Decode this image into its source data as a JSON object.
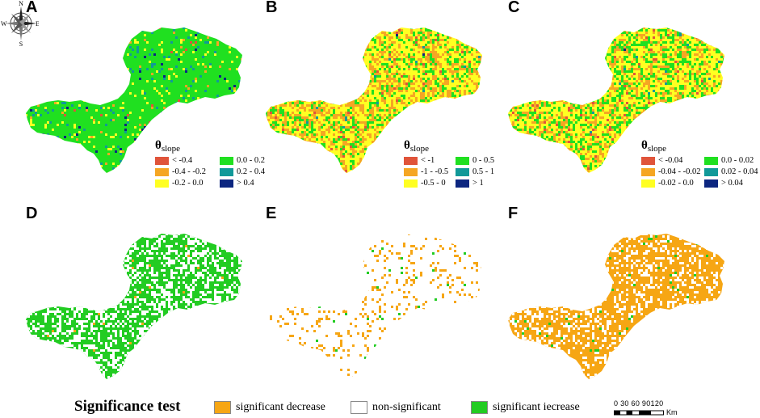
{
  "panels": [
    {
      "label": "A",
      "mode": "slope",
      "weights": [
        0.005,
        0.02,
        0.06,
        0.86,
        0.045,
        0.01
      ],
      "legend_index": 0
    },
    {
      "label": "B",
      "mode": "slope",
      "weights": [
        0.02,
        0.3,
        0.48,
        0.19,
        0.008,
        0.002
      ],
      "legend_index": 1
    },
    {
      "label": "C",
      "mode": "slope",
      "weights": [
        0.02,
        0.22,
        0.5,
        0.25,
        0.008,
        0.002
      ],
      "legend_index": 2
    },
    {
      "label": "D",
      "mode": "sig",
      "weights": [
        0.01,
        0.36,
        0.63
      ]
    },
    {
      "label": "E",
      "mode": "sig",
      "weights": [
        0.12,
        0.87,
        0.01
      ]
    },
    {
      "label": "F",
      "mode": "sig",
      "weights": [
        0.72,
        0.26,
        0.02
      ]
    }
  ],
  "slope_legends": [
    {
      "title": "θ",
      "sub": "slope",
      "items": [
        "< -0.4",
        "0.0 - 0.2",
        "-0.4 - -0.2",
        "0.2 - 0.4",
        "-0.2 - 0.0",
        "> 0.4"
      ]
    },
    {
      "title": "θ",
      "sub": "slope",
      "items": [
        "< -1",
        "0 - 0.5",
        "-1 - -0.5",
        "0.5 - 1",
        "-0.5 - 0",
        "> 1"
      ]
    },
    {
      "title": "θ",
      "sub": "slope",
      "items": [
        "< -0.04",
        "0.0 - 0.02",
        "-0.04 - -0.02",
        "0.02 - 0.04",
        "-0.02 - 0.0",
        "> 0.04"
      ]
    }
  ],
  "slope_colors": [
    "#e0543a",
    "#f5a623",
    "#ffff22",
    "#20e020",
    "#119999",
    "#0c2680"
  ],
  "slope_swatch_order": [
    0,
    3,
    1,
    4,
    2,
    5
  ],
  "sig_colors": [
    "#f6a614",
    "#ffffff",
    "#22cc22"
  ],
  "significance": {
    "title": "Significance test",
    "items": [
      {
        "label": "significant decrease",
        "color": "#f6a614"
      },
      {
        "label": "non-significant",
        "color": "#ffffff"
      },
      {
        "label": "significant iecrease",
        "color": "#22cc22"
      }
    ]
  },
  "compass": {
    "n": "N",
    "s": "S",
    "e": "E",
    "w": "W"
  },
  "scale": {
    "ticks": "0  30 60 90120",
    "unit": "Km"
  }
}
